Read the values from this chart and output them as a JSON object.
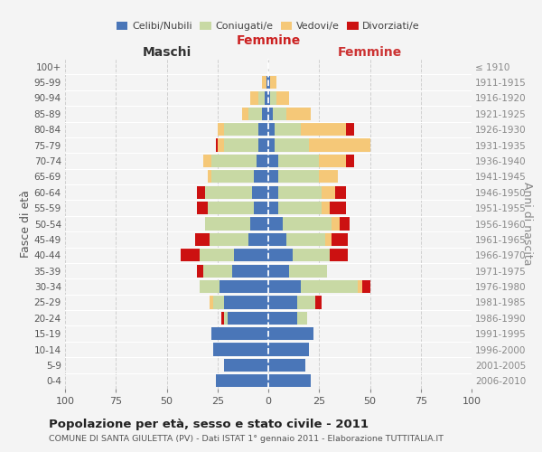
{
  "age_groups": [
    "0-4",
    "5-9",
    "10-14",
    "15-19",
    "20-24",
    "25-29",
    "30-34",
    "35-39",
    "40-44",
    "45-49",
    "50-54",
    "55-59",
    "60-64",
    "65-69",
    "70-74",
    "75-79",
    "80-84",
    "85-89",
    "90-94",
    "95-99",
    "100+"
  ],
  "birth_years": [
    "2006-2010",
    "2001-2005",
    "1996-2000",
    "1991-1995",
    "1986-1990",
    "1981-1985",
    "1976-1980",
    "1971-1975",
    "1966-1970",
    "1961-1965",
    "1956-1960",
    "1951-1955",
    "1946-1950",
    "1941-1945",
    "1936-1940",
    "1931-1935",
    "1926-1930",
    "1921-1925",
    "1916-1920",
    "1911-1915",
    "≤ 1910"
  ],
  "colors": {
    "celibi": "#4a76b8",
    "coniugati": "#c8d9a4",
    "vedovi": "#f5c878",
    "divorziati": "#cc1111"
  },
  "males_celibi": [
    26,
    22,
    27,
    28,
    20,
    22,
    24,
    18,
    17,
    10,
    9,
    7,
    8,
    7,
    6,
    5,
    5,
    3,
    2,
    1,
    0
  ],
  "males_coniugati": [
    0,
    0,
    0,
    0,
    2,
    5,
    10,
    14,
    17,
    19,
    22,
    23,
    23,
    21,
    22,
    17,
    17,
    7,
    3,
    0,
    0
  ],
  "males_vedovi": [
    0,
    0,
    0,
    0,
    0,
    2,
    0,
    0,
    0,
    0,
    0,
    0,
    0,
    2,
    4,
    3,
    3,
    3,
    4,
    2,
    0
  ],
  "males_divorziati": [
    0,
    0,
    0,
    0,
    1,
    0,
    0,
    3,
    9,
    7,
    0,
    5,
    4,
    0,
    0,
    1,
    0,
    0,
    0,
    0,
    0
  ],
  "females_celibi": [
    21,
    18,
    20,
    22,
    14,
    14,
    16,
    10,
    12,
    9,
    7,
    5,
    5,
    5,
    5,
    3,
    3,
    2,
    1,
    1,
    0
  ],
  "females_coniugati": [
    0,
    0,
    0,
    0,
    5,
    9,
    28,
    19,
    18,
    19,
    24,
    21,
    21,
    20,
    20,
    17,
    13,
    7,
    3,
    0,
    0
  ],
  "females_vedovi": [
    0,
    0,
    0,
    0,
    0,
    0,
    2,
    0,
    0,
    3,
    4,
    4,
    7,
    9,
    13,
    30,
    22,
    12,
    6,
    3,
    0
  ],
  "females_divorziati": [
    0,
    0,
    0,
    0,
    0,
    3,
    4,
    0,
    9,
    8,
    5,
    8,
    5,
    0,
    4,
    0,
    4,
    0,
    0,
    0,
    0
  ],
  "xlim": 100,
  "xtick_spacing": 25,
  "title": "Popolazione per età, sesso e stato civile - 2011",
  "subtitle": "COMUNE DI SANTA GIULETTA (PV) - Dati ISTAT 1° gennaio 2011 - Elaborazione TUTTITALIA.IT",
  "header_maschi": "Maschi",
  "header_femmine": "Femmine",
  "ylabel_left": "Fasce di età",
  "ylabel_right": "Anni di nascita",
  "bg_color": "#f4f4f4",
  "grid_color": "#cccccc",
  "legend_labels": [
    "Celibi/Nubili",
    "Coniugati/e",
    "Vedovi/e",
    "Divorziati/e"
  ]
}
